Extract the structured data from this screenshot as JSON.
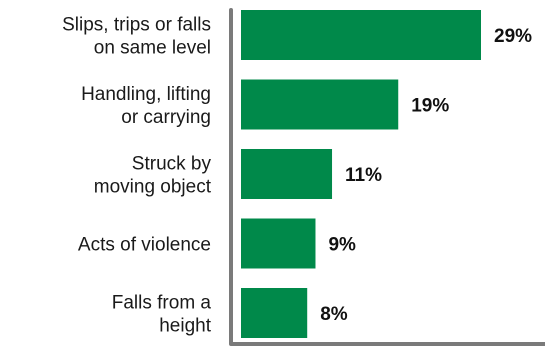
{
  "chart_data": {
    "type": "bar",
    "orientation": "horizontal",
    "categories": [
      [
        "Slips, trips or falls",
        "on same level"
      ],
      [
        "Handling, lifting",
        "or carrying"
      ],
      [
        "Struck by",
        "moving object"
      ],
      [
        "Acts of violence"
      ],
      [
        "Falls from a",
        "height"
      ]
    ],
    "values": [
      29,
      19,
      11,
      9,
      8
    ],
    "value_labels": [
      "29%",
      "19%",
      "11%",
      "9%",
      "8%"
    ],
    "unit": "%",
    "xlim": [
      0,
      30
    ],
    "grid": false,
    "legend": "none",
    "title": "",
    "xlabel": "",
    "ylabel": ""
  },
  "colors": {
    "bar": "#00894a",
    "axis": "#7a7a7a"
  }
}
